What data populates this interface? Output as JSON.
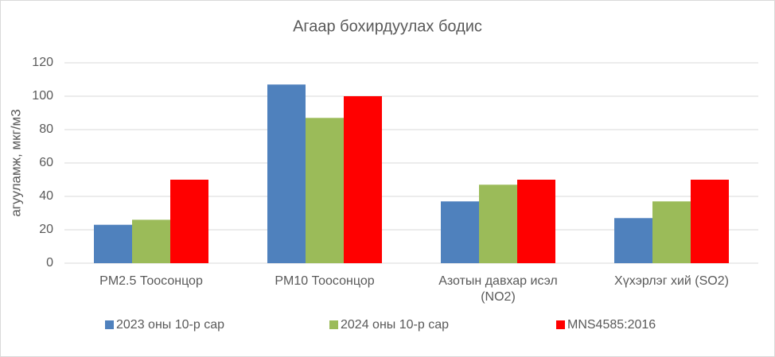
{
  "chart_data": {
    "type": "bar",
    "title": "Агаар бохирдуулах  бодис",
    "y_label": "агууламж, мкг/м3",
    "categories": [
      "PM2.5 Тоосонцор",
      "PM10 Тоосонцор",
      "Азотын давхар исэл (NO2)",
      "Хүхэрлэг хий (SO2)"
    ],
    "series": [
      {
        "name": "2023 оны 10-р сар",
        "color": "#4f81bd",
        "values": [
          23,
          107,
          37,
          27
        ]
      },
      {
        "name": "2024 оны 10-р сар",
        "color": "#9bbb59",
        "values": [
          26,
          87,
          47,
          37
        ]
      },
      {
        "name": "MNS4585:2016",
        "color": "#ff0000",
        "values": [
          50,
          100,
          50,
          50
        ]
      }
    ],
    "ylim": [
      0,
      120
    ],
    "yticks": [
      0,
      20,
      40,
      60,
      80,
      100,
      120
    ],
    "grid": true,
    "legend": "bottom"
  }
}
